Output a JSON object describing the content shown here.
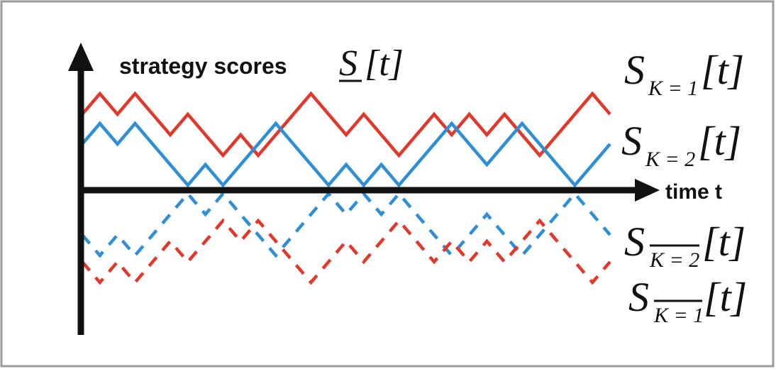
{
  "title": {
    "text": "strategy scores ",
    "symbol": "S",
    "arg": "[t]"
  },
  "x_axis_label": "time t",
  "colors": {
    "red": "#e0392b",
    "blue": "#2e8fd6",
    "axis": "#111111",
    "border": "#9a9a9a"
  },
  "labels": [
    {
      "main": "S",
      "sub": "K = 1",
      "arg": "[t]",
      "overbar": false
    },
    {
      "main": "S",
      "sub": "K = 2",
      "arg": "[t]",
      "overbar": false
    },
    {
      "main": "S",
      "sub": "K = 2",
      "arg": "[t]",
      "overbar": true
    },
    {
      "main": "S",
      "sub": "K = 1",
      "arg": "[t]",
      "overbar": true
    }
  ],
  "chart_data": {
    "type": "line",
    "x": [
      0,
      1,
      2,
      3,
      4,
      5,
      6,
      7,
      8,
      9,
      10,
      11,
      12,
      13,
      14,
      15,
      16,
      17,
      18,
      19,
      20,
      21,
      22,
      23,
      24,
      25,
      26,
      27,
      28,
      29,
      30
    ],
    "series": [
      {
        "color": "red",
        "dashed": false,
        "values": [
          1,
          2,
          1,
          2,
          1,
          0,
          1,
          0,
          -1,
          0,
          -1,
          0,
          1,
          2,
          1,
          0,
          1,
          0,
          -1,
          0,
          1,
          0,
          1,
          0,
          1,
          0,
          -1,
          0,
          1,
          2,
          1
        ]
      },
      {
        "color": "blue",
        "dashed": false,
        "values": [
          1,
          2,
          1,
          2,
          1,
          0,
          -1,
          0,
          -1,
          0,
          1,
          2,
          1,
          0,
          -1,
          0,
          -1,
          0,
          -1,
          0,
          1,
          2,
          1,
          0,
          1,
          2,
          1,
          0,
          -1,
          0,
          1
        ]
      },
      {
        "color": "blue",
        "dashed": true,
        "values": [
          -1,
          -2,
          -1,
          -2,
          -1,
          0,
          1,
          0,
          1,
          0,
          -1,
          -2,
          -1,
          0,
          1,
          0,
          1,
          0,
          1,
          0,
          -1,
          -2,
          -1,
          0,
          -1,
          -2,
          -1,
          0,
          1,
          0,
          -1
        ]
      },
      {
        "color": "red",
        "dashed": true,
        "values": [
          -1,
          -2,
          -1,
          -2,
          -1,
          0,
          -1,
          0,
          1,
          0,
          1,
          0,
          -1,
          -2,
          -1,
          0,
          -1,
          0,
          1,
          0,
          -1,
          0,
          -1,
          0,
          -1,
          0,
          1,
          0,
          -1,
          -2,
          -1
        ]
      }
    ]
  }
}
